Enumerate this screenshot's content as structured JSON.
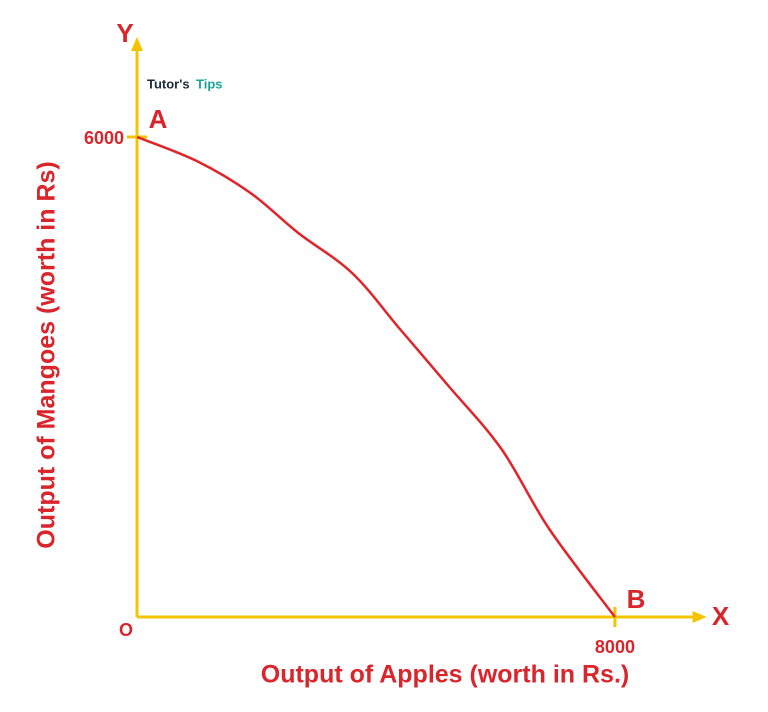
{
  "chart_data": {
    "type": "line",
    "logo": {
      "part1": "Tutor's",
      "part2": "Tips"
    },
    "xlabel": "Output of Apples (worth in Rs.)",
    "ylabel": "Output of Mangoes (worth in Rs)",
    "x_axis_name": "X",
    "y_axis_name": "Y",
    "origin_label": "O",
    "x": [
      0,
      1000,
      1900,
      2700,
      3600,
      4400,
      5200,
      6100,
      6900,
      8000
    ],
    "series": [
      {
        "color": "#e0242a",
        "values": [
          6000,
          5700,
          5300,
          4800,
          4300,
          3600,
          2900,
          2100,
          1100,
          0
        ]
      }
    ],
    "point_labels": [
      {
        "index": 0,
        "label": "A"
      },
      {
        "index": 9,
        "label": "B"
      }
    ],
    "xlim": [
      0,
      9400
    ],
    "ylim": [
      0,
      7150
    ],
    "xticks": [
      8000
    ],
    "yticks": [
      6000
    ],
    "axis_color": "#f5c400",
    "text_color": "#d9262c"
  }
}
